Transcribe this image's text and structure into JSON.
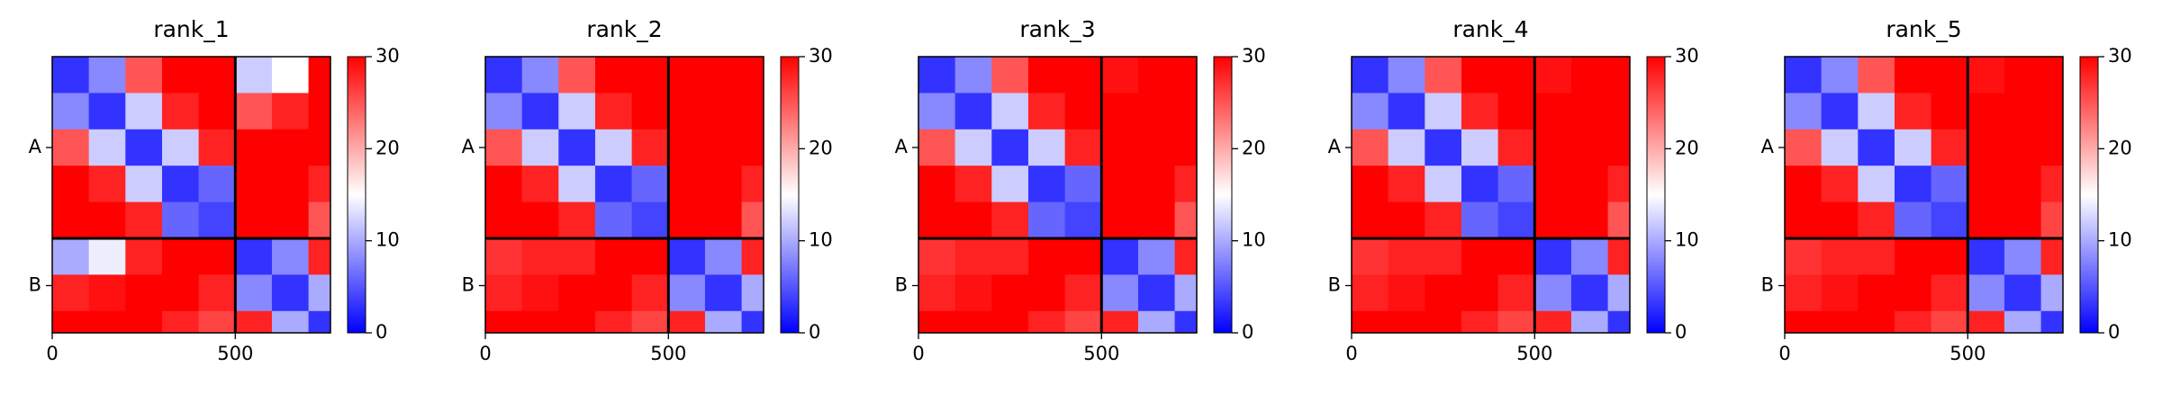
{
  "chart_data": [
    {
      "type": "heatmap",
      "title": "rank_1",
      "colormap": "bwr",
      "bins": [
        0,
        100,
        200,
        300,
        400,
        500,
        600,
        700,
        760
      ],
      "values": [
        [
          3,
          8,
          25,
          30,
          30,
          12,
          15,
          30
        ],
        [
          8,
          3,
          12,
          28,
          30,
          25,
          28,
          30
        ],
        [
          25,
          12,
          3,
          12,
          28,
          30,
          30,
          30
        ],
        [
          30,
          28,
          12,
          3,
          6,
          30,
          30,
          28
        ],
        [
          30,
          30,
          28,
          6,
          4,
          30,
          30,
          25
        ],
        [
          10,
          14,
          28,
          30,
          30,
          3,
          8,
          28
        ],
        [
          28,
          29,
          30,
          30,
          28,
          8,
          3,
          10
        ],
        [
          30,
          30,
          30,
          28,
          26,
          28,
          10,
          3
        ]
      ],
      "xlim": [
        0,
        760
      ],
      "ylim": [
        760,
        0
      ],
      "xticks": [
        0,
        500
      ],
      "yticks": [
        {
          "value": 250,
          "label": "A"
        },
        {
          "value": 630,
          "label": "B"
        }
      ],
      "boundaries": [
        500
      ],
      "colorbar_lim": [
        0,
        30
      ],
      "colorbar_ticks": [
        0,
        10,
        20,
        30
      ]
    },
    {
      "type": "heatmap",
      "title": "rank_2",
      "colormap": "bwr",
      "bins": [
        0,
        100,
        200,
        300,
        400,
        500,
        600,
        700,
        760
      ],
      "values": [
        [
          3,
          8,
          25,
          30,
          30,
          30,
          30,
          30
        ],
        [
          8,
          3,
          12,
          28,
          30,
          30,
          30,
          30
        ],
        [
          25,
          12,
          3,
          12,
          28,
          30,
          30,
          30
        ],
        [
          30,
          28,
          12,
          3,
          6,
          30,
          30,
          28
        ],
        [
          30,
          30,
          28,
          6,
          4,
          30,
          30,
          25
        ],
        [
          27,
          28,
          28,
          30,
          30,
          3,
          8,
          28
        ],
        [
          28,
          29,
          30,
          30,
          28,
          8,
          3,
          10
        ],
        [
          30,
          30,
          30,
          28,
          26,
          28,
          10,
          3
        ]
      ],
      "xlim": [
        0,
        760
      ],
      "ylim": [
        760,
        0
      ],
      "xticks": [
        0,
        500
      ],
      "yticks": [
        {
          "value": 250,
          "label": "A"
        },
        {
          "value": 630,
          "label": "B"
        }
      ],
      "boundaries": [
        500
      ],
      "colorbar_lim": [
        0,
        30
      ],
      "colorbar_ticks": [
        0,
        10,
        20,
        30
      ]
    },
    {
      "type": "heatmap",
      "title": "rank_3",
      "colormap": "bwr",
      "bins": [
        0,
        100,
        200,
        300,
        400,
        500,
        600,
        700,
        760
      ],
      "values": [
        [
          3,
          8,
          25,
          30,
          30,
          29,
          30,
          30
        ],
        [
          8,
          3,
          12,
          28,
          30,
          30,
          30,
          30
        ],
        [
          25,
          12,
          3,
          12,
          28,
          30,
          30,
          30
        ],
        [
          30,
          28,
          12,
          3,
          6,
          30,
          30,
          28
        ],
        [
          30,
          30,
          28,
          6,
          4,
          30,
          30,
          25
        ],
        [
          27,
          28,
          28,
          30,
          30,
          3,
          8,
          28
        ],
        [
          28,
          29,
          30,
          30,
          28,
          8,
          3,
          10
        ],
        [
          30,
          30,
          30,
          28,
          26,
          28,
          10,
          3
        ]
      ],
      "xlim": [
        0,
        760
      ],
      "ylim": [
        760,
        0
      ],
      "xticks": [
        0,
        500
      ],
      "yticks": [
        {
          "value": 250,
          "label": "A"
        },
        {
          "value": 630,
          "label": "B"
        }
      ],
      "boundaries": [
        500
      ],
      "colorbar_lim": [
        0,
        30
      ],
      "colorbar_ticks": [
        0,
        10,
        20,
        30
      ]
    },
    {
      "type": "heatmap",
      "title": "rank_4",
      "colormap": "bwr",
      "bins": [
        0,
        100,
        200,
        300,
        400,
        500,
        600,
        700,
        760
      ],
      "values": [
        [
          3,
          8,
          25,
          30,
          30,
          29,
          30,
          30
        ],
        [
          8,
          3,
          12,
          28,
          30,
          30,
          30,
          30
        ],
        [
          25,
          12,
          3,
          12,
          28,
          30,
          30,
          30
        ],
        [
          30,
          28,
          12,
          3,
          6,
          30,
          30,
          28
        ],
        [
          30,
          30,
          28,
          6,
          4,
          30,
          30,
          25
        ],
        [
          27,
          28,
          28,
          30,
          30,
          3,
          8,
          28
        ],
        [
          28,
          29,
          30,
          30,
          28,
          8,
          3,
          10
        ],
        [
          30,
          30,
          30,
          28,
          26,
          28,
          10,
          3
        ]
      ],
      "xlim": [
        0,
        760
      ],
      "ylim": [
        760,
        0
      ],
      "xticks": [
        0,
        500
      ],
      "yticks": [
        {
          "value": 250,
          "label": "A"
        },
        {
          "value": 630,
          "label": "B"
        }
      ],
      "boundaries": [
        500
      ],
      "colorbar_lim": [
        0,
        30
      ],
      "colorbar_ticks": [
        0,
        10,
        20,
        30
      ]
    },
    {
      "type": "heatmap",
      "title": "rank_5",
      "colormap": "bwr",
      "bins": [
        0,
        100,
        200,
        300,
        400,
        500,
        600,
        700,
        760
      ],
      "values": [
        [
          3,
          8,
          25,
          30,
          30,
          29,
          30,
          30
        ],
        [
          8,
          3,
          12,
          28,
          30,
          30,
          30,
          30
        ],
        [
          25,
          12,
          3,
          12,
          28,
          30,
          30,
          30
        ],
        [
          30,
          28,
          12,
          3,
          6,
          30,
          30,
          28
        ],
        [
          30,
          30,
          28,
          6,
          4,
          30,
          30,
          26
        ],
        [
          27,
          28,
          28,
          30,
          30,
          3,
          8,
          28
        ],
        [
          28,
          29,
          30,
          30,
          28,
          8,
          3,
          10
        ],
        [
          30,
          30,
          30,
          28,
          26,
          28,
          10,
          3
        ]
      ],
      "xlim": [
        0,
        760
      ],
      "ylim": [
        760,
        0
      ],
      "xticks": [
        0,
        500
      ],
      "yticks": [
        {
          "value": 250,
          "label": "A"
        },
        {
          "value": 630,
          "label": "B"
        }
      ],
      "boundaries": [
        500
      ],
      "colorbar_lim": [
        0,
        30
      ],
      "colorbar_ticks": [
        0,
        10,
        20,
        30
      ]
    }
  ]
}
